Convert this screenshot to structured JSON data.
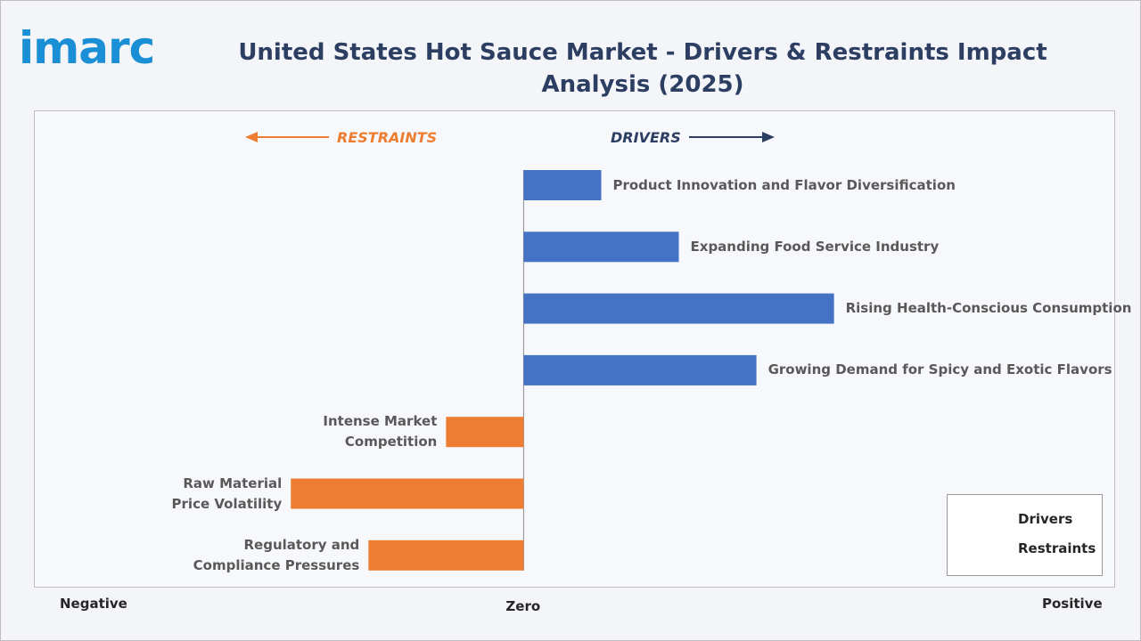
{
  "brand": "imarc",
  "chart_data": {
    "type": "bar",
    "orientation": "horizontal",
    "title": "United States Hot Sauce Market - Drivers & Restraints Impact Analysis (2025)",
    "annotations": {
      "restraints": "RESTRAINTS",
      "drivers": "DRIVERS"
    },
    "x_axis_labels": [
      "Negative",
      "Zero",
      "Positive"
    ],
    "categories": [
      "Product Innovation and Flavor Diversification",
      "Expanding Food Service Industry",
      "Rising Health-Conscious Consumption",
      "Growing Demand for Spicy and Exotic Flavors",
      "Intense Market Competition",
      "Raw Material Price Volatility",
      "Regulatory and Compliance Pressures"
    ],
    "series": [
      {
        "name": "Drivers",
        "color": "#4472c4",
        "values": [
          1,
          2,
          4,
          3,
          null,
          null,
          null
        ]
      },
      {
        "name": "Restraints",
        "color": "#ed7d31",
        "values": [
          null,
          null,
          null,
          null,
          -1,
          -3,
          -2
        ]
      }
    ],
    "xlim": [
      -6.3,
      7.6
    ],
    "legend": "bottom-right"
  }
}
